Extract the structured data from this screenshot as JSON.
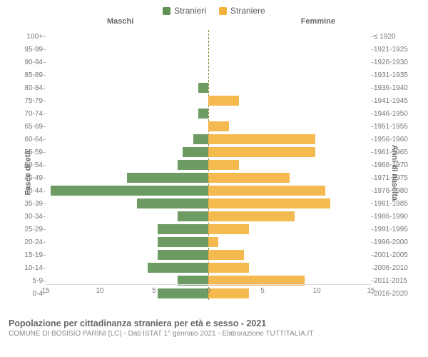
{
  "chart": {
    "type": "population-pyramid",
    "legend": {
      "male": {
        "label": "Stranieri",
        "color": "#5d9053"
      },
      "female": {
        "label": "Straniere",
        "color": "#f3b13c"
      }
    },
    "header": {
      "maleTitle": "Maschi",
      "femaleTitle": "Femmine"
    },
    "yAxisLeftTitle": "Fasce di età",
    "yAxisRightTitle": "Anni di nascita",
    "xAxis": {
      "max": 16,
      "ticks": [
        15,
        10,
        5,
        0,
        5,
        10,
        15
      ]
    },
    "barColors": {
      "male": "#5d9053",
      "female": "#f3b13c"
    },
    "background": "#ffffff",
    "fontSizes": {
      "legend": 12,
      "axisTitle": 11,
      "tick": 10
    },
    "rows": [
      {
        "age": "100+",
        "birth": "≤ 1920",
        "m": 0,
        "f": 0
      },
      {
        "age": "95-99",
        "birth": "1921-1925",
        "m": 0,
        "f": 0
      },
      {
        "age": "90-94",
        "birth": "1926-1930",
        "m": 0,
        "f": 0
      },
      {
        "age": "85-89",
        "birth": "1931-1935",
        "m": 0,
        "f": 0
      },
      {
        "age": "80-84",
        "birth": "1936-1940",
        "m": 1,
        "f": 0
      },
      {
        "age": "75-79",
        "birth": "1941-1945",
        "m": 0,
        "f": 3
      },
      {
        "age": "70-74",
        "birth": "1946-1950",
        "m": 1,
        "f": 0
      },
      {
        "age": "65-69",
        "birth": "1951-1955",
        "m": 0,
        "f": 2
      },
      {
        "age": "60-64",
        "birth": "1956-1960",
        "m": 1.5,
        "f": 10.5
      },
      {
        "age": "55-59",
        "birth": "1961-1965",
        "m": 2.5,
        "f": 10.5
      },
      {
        "age": "50-54",
        "birth": "1966-1970",
        "m": 3,
        "f": 3
      },
      {
        "age": "45-49",
        "birth": "1971-1975",
        "m": 8,
        "f": 8
      },
      {
        "age": "40-44",
        "birth": "1976-1980",
        "m": 15.5,
        "f": 11.5
      },
      {
        "age": "35-39",
        "birth": "1981-1985",
        "m": 7,
        "f": 12
      },
      {
        "age": "30-34",
        "birth": "1986-1990",
        "m": 3,
        "f": 8.5
      },
      {
        "age": "25-29",
        "birth": "1991-1995",
        "m": 5,
        "f": 4
      },
      {
        "age": "20-24",
        "birth": "1996-2000",
        "m": 5,
        "f": 1
      },
      {
        "age": "15-19",
        "birth": "2001-2005",
        "m": 5,
        "f": 3.5
      },
      {
        "age": "10-14",
        "birth": "2006-2010",
        "m": 6,
        "f": 4
      },
      {
        "age": "5-9",
        "birth": "2011-2015",
        "m": 3,
        "f": 9.5
      },
      {
        "age": "0-4",
        "birth": "2016-2020",
        "m": 5,
        "f": 4
      }
    ],
    "footer": {
      "line1": "Popolazione per cittadinanza straniera per età e sesso - 2021",
      "line2": "COMUNE DI BOSISIO PARINI (LC) - Dati ISTAT 1° gennaio 2021 - Elaborazione TUTTITALIA.IT"
    }
  }
}
